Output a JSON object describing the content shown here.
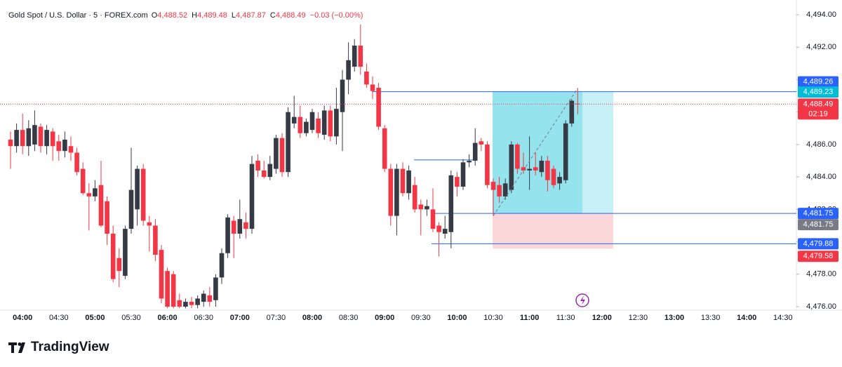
{
  "chart_data": {
    "type": "candlestick",
    "title": "Gold Spot / U.S. Dollar · 5 · FOREX.com",
    "ohlc_labels": [
      {
        "name": "O",
        "value": "4,488.52"
      },
      {
        "name": "H",
        "value": "4,489.48"
      },
      {
        "name": "L",
        "value": "4,487.87"
      },
      {
        "name": "C",
        "value": "4,488.49"
      }
    ],
    "change": "−0.03 (−0.00%)",
    "up_color": "#363a45",
    "down_color": "#f23645",
    "open": [
      4486.3,
      4485.9,
      4486.9,
      4485.9,
      4486.0,
      4487.1,
      4485.9,
      4486.8,
      4486.2,
      4485.6,
      4485.9,
      4485.5,
      4484.5,
      4483.0,
      4482.8,
      4483.5,
      4482.5,
      4480.5,
      4479.0,
      4477.9,
      4480.8,
      4482.0,
      4484.5,
      4481.2,
      4481.0,
      4479.5,
      4478.2,
      4478.0,
      4476.4,
      4476.0,
      4476.3,
      4476.1,
      4476.3,
      4476.7,
      4476.4,
      4477.8,
      4479.3,
      4481.3,
      4480.5,
      4481.2,
      4480.8,
      4485.0,
      4484.4,
      4484.0,
      4484.5,
      4486.4,
      4484.3,
      4487.3,
      4487.7,
      4486.7,
      4486.9,
      4487.6,
      4486.6,
      4488.1,
      4486.5,
      4488.0,
      4490.0,
      4490.8,
      4492.1,
      4490.5,
      4489.7,
      4489.5,
      4487.0,
      4484.5,
      4481.6,
      4484.5,
      4483.0,
      4483.5,
      4482.3,
      4482.0,
      4482.0,
      4481.0,
      4480.5,
      4480.6,
      4484.0,
      4483.4,
      4484.9,
      4485.0,
      4486.2,
      4486.0,
      4483.7,
      4483.5,
      4482.8,
      4483.2,
      4486.0,
      4484.6,
      4484.4,
      4484.6,
      4484.3,
      4485.0,
      4484.5,
      4483.6,
      4483.8,
      4487.3,
      4488.52
    ],
    "high": [
      4486.8,
      4487.3,
      4487.9,
      4487.5,
      4488.1,
      4487.3,
      4487.2,
      4487.0,
      4486.6,
      4486.8,
      4486.5,
      4485.8,
      4484.9,
      4483.6,
      4483.8,
      4485.0,
      4482.8,
      4481.0,
      4479.6,
      4481.0,
      4485.8,
      4484.7,
      4484.8,
      4481.6,
      4481.4,
      4479.8,
      4478.4,
      4478.2,
      4476.8,
      4476.5,
      4476.6,
      4476.7,
      4477.0,
      4477.2,
      4478.0,
      4479.6,
      4481.7,
      4481.6,
      4482.6,
      4481.8,
      4485.3,
      4485.4,
      4485.0,
      4485.3,
      4486.6,
      4486.7,
      4488.3,
      4489.0,
      4488.4,
      4487.6,
      4488.2,
      4488.0,
      4488.4,
      4488.4,
      4489.5,
      4490.6,
      4492.3,
      4492.5,
      4493.4,
      4491.0,
      4490.2,
      4489.8,
      4487.2,
      4484.8,
      4484.8,
      4484.9,
      4484.7,
      4484.0,
      4482.6,
      4482.6,
      4483.3,
      4481.2,
      4481.6,
      4484.4,
      4484.3,
      4485.1,
      4485.4,
      4487.0,
      4486.4,
      4486.2,
      4483.9,
      4484.0,
      4483.9,
      4486.2,
      4486.1,
      4485.5,
      4486.5,
      4485.5,
      4485.3,
      4485.3,
      4484.7,
      4484.3,
      4487.5,
      4488.8,
      4489.48
    ],
    "low": [
      4484.5,
      4485.5,
      4485.4,
      4485.3,
      4485.6,
      4485.5,
      4485.4,
      4485.0,
      4485.0,
      4485.2,
      4485.0,
      4484.1,
      4482.9,
      4480.7,
      4482.5,
      4480.9,
      4479.8,
      4477.5,
      4477.2,
      4477.7,
      4480.5,
      4481.0,
      4481.0,
      4479.4,
      4478.8,
      4476.2,
      4475.9,
      4475.9,
      4475.9,
      4475.9,
      4475.9,
      4475.9,
      4476.0,
      4476.0,
      4476.0,
      4477.4,
      4479.0,
      4479.0,
      4480.2,
      4480.2,
      4480.5,
      4484.0,
      4483.9,
      4483.8,
      4484.2,
      4484.0,
      4484.0,
      4487.0,
      4486.4,
      4486.5,
      4486.7,
      4486.4,
      4486.3,
      4486.2,
      4486.0,
      4485.6,
      4489.1,
      4490.5,
      4490.3,
      4489.5,
      4488.8,
      4486.9,
      4484.3,
      4481.0,
      4480.4,
      4482.8,
      4482.6,
      4481.8,
      4480.4,
      4481.6,
      4480.6,
      4479.1,
      4480.2,
      4479.6,
      4482.8,
      4483.2,
      4484.6,
      4484.7,
      4485.6,
      4483.3,
      4481.6,
      4482.4,
      4482.6,
      4483.0,
      4484.2,
      4484.2,
      4483.2,
      4484.1,
      4484.0,
      4483.1,
      4483.3,
      4483.2,
      4483.6,
      4487.1,
      4487.87
    ],
    "close": [
      4485.9,
      4486.9,
      4485.9,
      4487.0,
      4487.2,
      4485.9,
      4486.9,
      4485.9,
      4485.6,
      4486.3,
      4485.5,
      4484.3,
      4483.0,
      4482.8,
      4483.3,
      4481.0,
      4480.5,
      4477.7,
      4478.2,
      4480.8,
      4483.2,
      4484.5,
      4481.3,
      4481.0,
      4479.2,
      4476.5,
      4476.0,
      4476.0,
      4476.0,
      4476.3,
      4476.1,
      4476.5,
      4476.8,
      4476.3,
      4477.8,
      4479.3,
      4481.5,
      4480.5,
      4481.4,
      4480.8,
      4484.8,
      4484.4,
      4484.0,
      4484.8,
      4486.4,
      4484.3,
      4488.0,
      4487.7,
      4486.7,
      4487.4,
      4488.0,
      4486.7,
      4488.1,
      4486.5,
      4488.2,
      4490.0,
      4491.2,
      4492.1,
      4490.8,
      4489.7,
      4489.3,
      4487.1,
      4484.5,
      4481.6,
      4484.5,
      4483.0,
      4484.4,
      4482.0,
      4482.0,
      4482.2,
      4480.8,
      4480.6,
      4480.8,
      4484.1,
      4483.4,
      4484.9,
      4485.0,
      4486.1,
      4486.0,
      4483.5,
      4483.2,
      4482.8,
      4483.6,
      4486.0,
      4484.5,
      4484.4,
      4484.5,
      4484.4,
      4485.0,
      4483.8,
      4483.5,
      4484.0,
      4487.3,
      4488.7,
      4488.49
    ],
    "xticks": [
      "04:00",
      "04:30",
      "05:00",
      "05:30",
      "06:00",
      "06:30",
      "07:00",
      "07:30",
      "08:00",
      "08:30",
      "09:00",
      "09:30",
      "10:00",
      "10:30",
      "11:00",
      "11:30",
      "12:00",
      "12:30",
      "13:00",
      "13:30",
      "14:00",
      "14:30"
    ],
    "ylim": [
      4475.87,
      4494.48
    ],
    "yticks": [
      {
        "value": 4494,
        "label": "4,494.00"
      },
      {
        "value": 4492,
        "label": "4,492.00"
      },
      {
        "value": 4490,
        "label": "4,490.00"
      },
      {
        "value": 4488,
        "label": "4,488.00"
      },
      {
        "value": 4486,
        "label": "4,486.00"
      },
      {
        "value": 4484,
        "label": "4,484.00"
      },
      {
        "value": 4482,
        "label": "4,482.00"
      },
      {
        "value": 4480,
        "label": "4,480.00"
      },
      {
        "value": 4478,
        "label": "4,478.00"
      },
      {
        "value": 4476,
        "label": "4,476.00"
      }
    ],
    "price_tags": [
      {
        "value": 4489.26,
        "label": "4,489.26",
        "color": "#2962ff"
      },
      {
        "value": 4489.23,
        "label": "4,489.23",
        "color": "#00bcd4"
      },
      {
        "value": 4488.49,
        "label": "4,488.49",
        "color": "#f23645",
        "countdown": "02:19"
      },
      {
        "value": 4481.75,
        "label": "4,481.75",
        "color": "#2962ff"
      },
      {
        "value": 4481.75,
        "label": "4,481.75",
        "color": "#787b86"
      },
      {
        "value": 4479.88,
        "label": "4,479.88",
        "color": "#2962ff"
      },
      {
        "value": 4479.58,
        "label": "4,479.58",
        "color": "#f23645"
      }
    ],
    "horizontal_lines": [
      4489.26,
      4481.75,
      4479.88,
      4485.05
    ],
    "position": {
      "target": 4489.26,
      "entry": 4481.75,
      "stop": 4479.58
    },
    "brand": "TradingView"
  }
}
